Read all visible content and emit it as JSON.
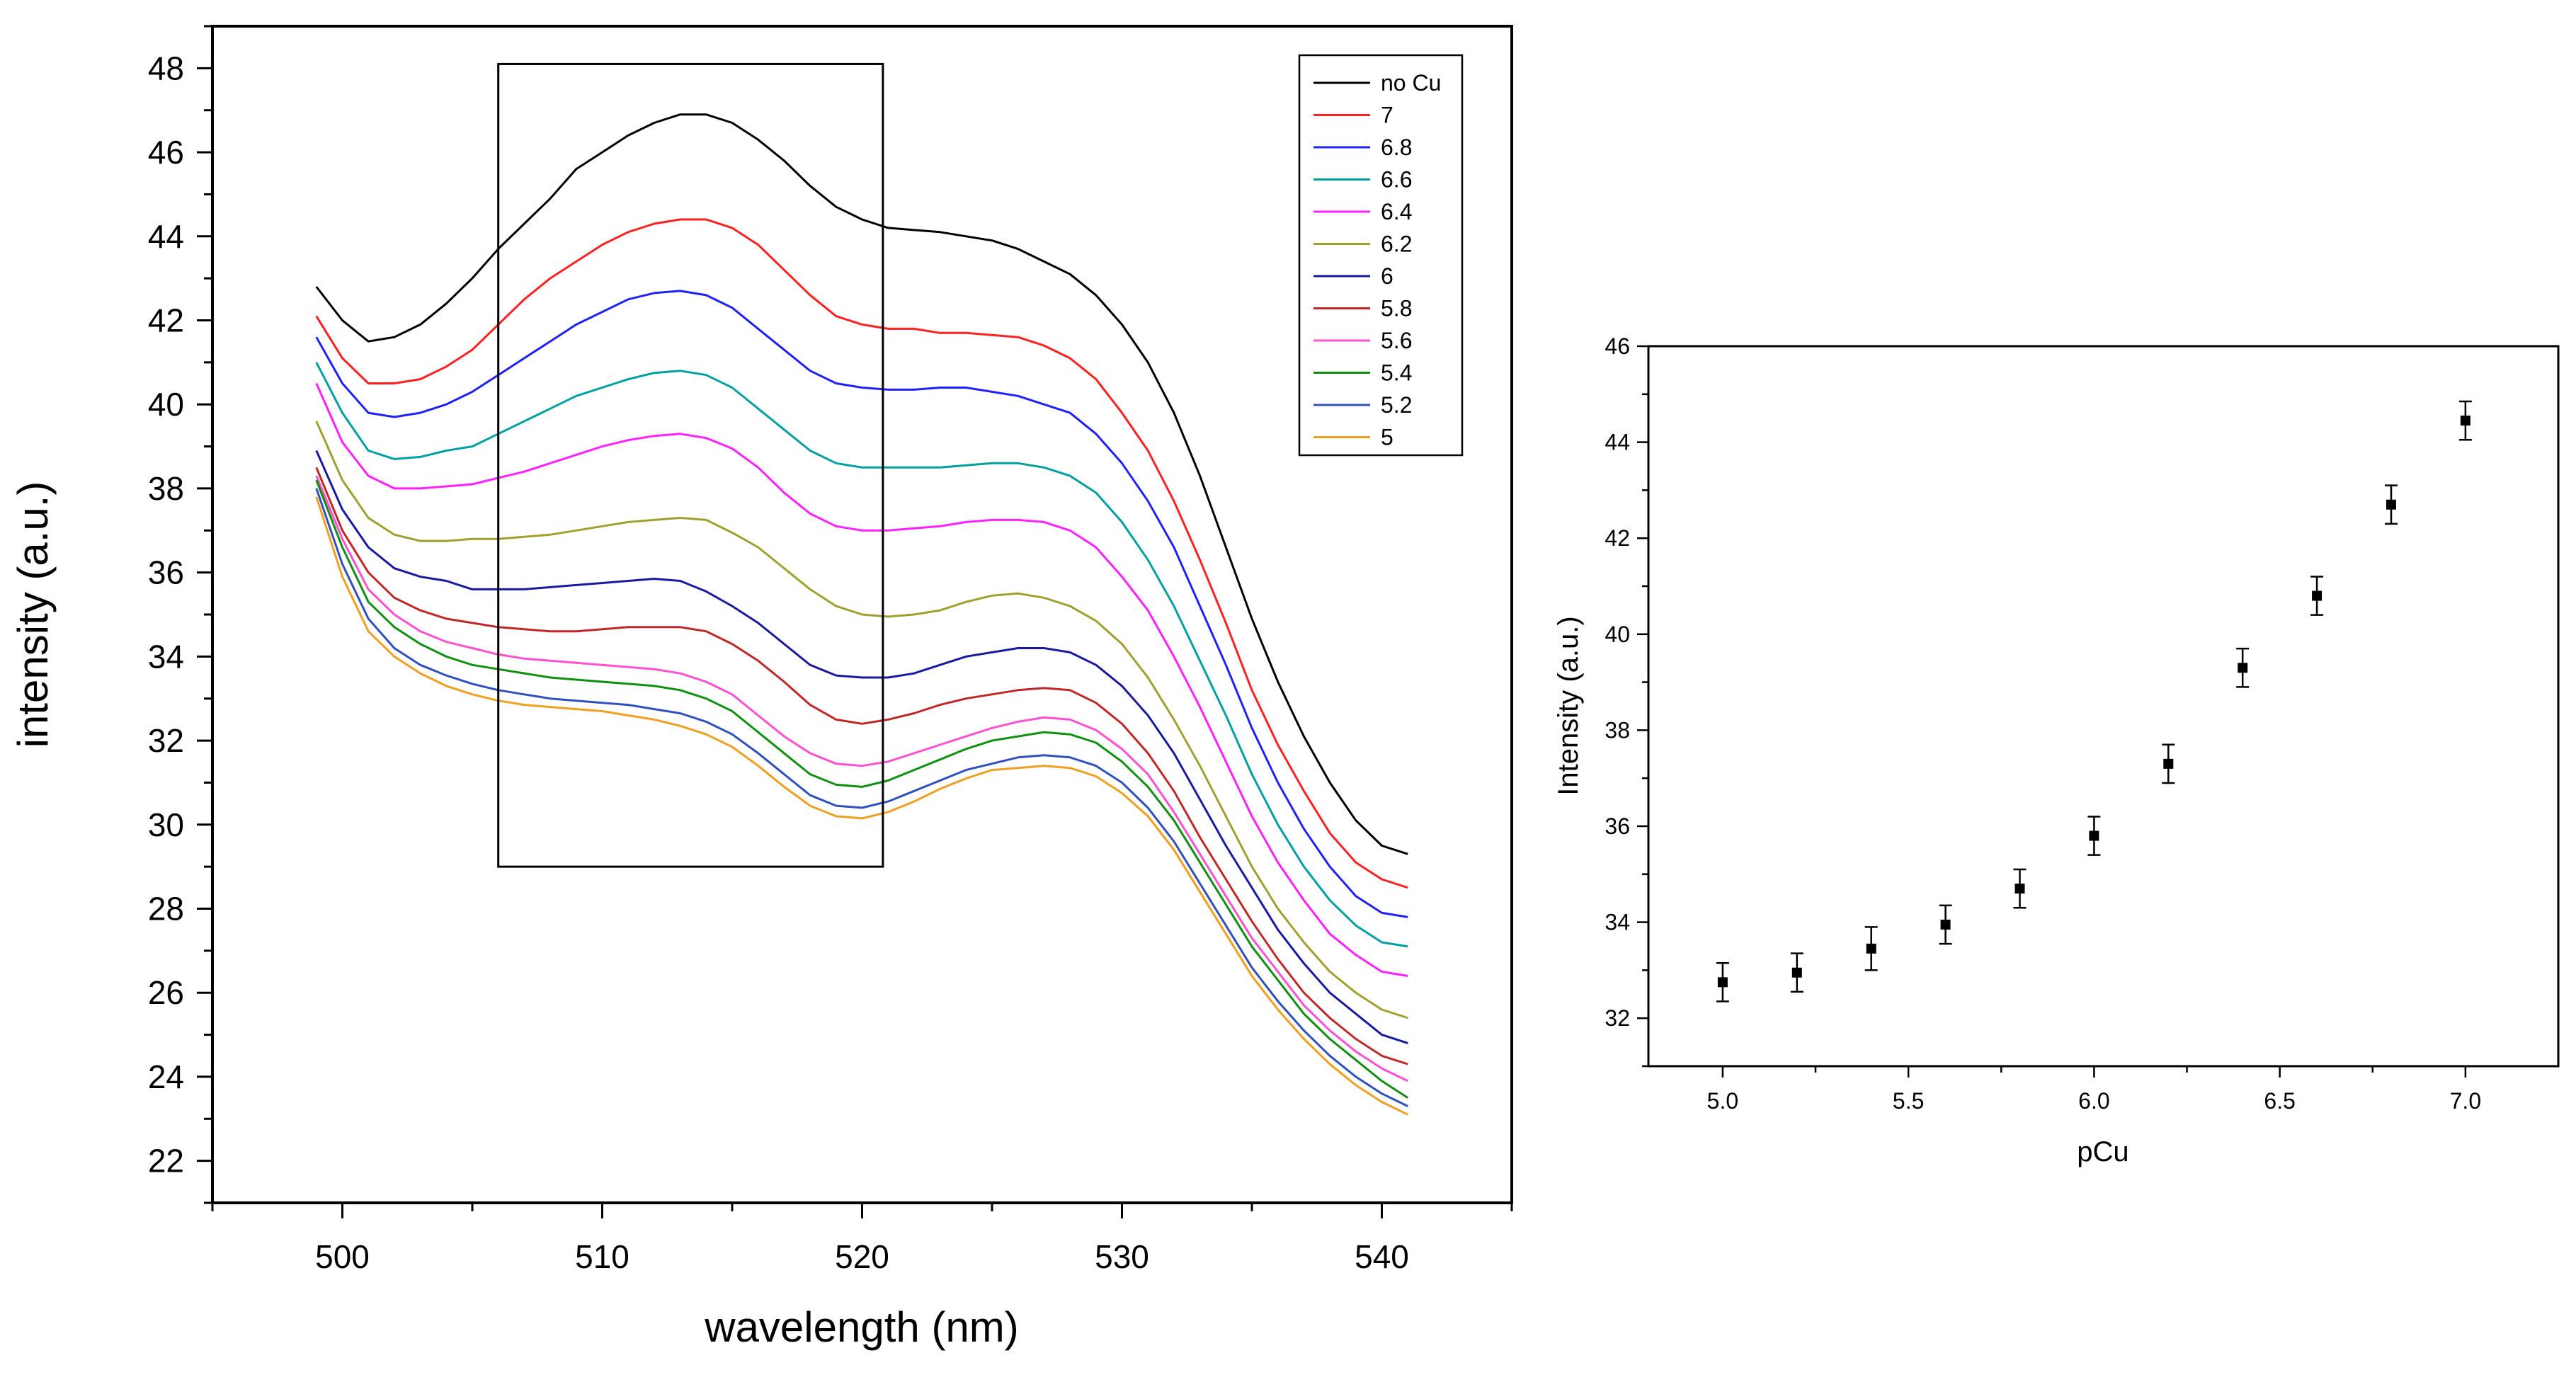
{
  "chart_data": [
    {
      "type": "line",
      "title": "",
      "xlabel": "wavelength (nm)",
      "ylabel": "intensity (a.u.)",
      "xlim": [
        495,
        545
      ],
      "ylim": [
        21,
        49
      ],
      "xticks": [
        500,
        510,
        520,
        530,
        540
      ],
      "yticks": [
        22,
        24,
        26,
        28,
        30,
        32,
        34,
        36,
        38,
        40,
        42,
        44,
        46,
        48
      ],
      "grid": false,
      "legend_position": "top-right",
      "annotations": [
        {
          "type": "rectangle",
          "x_range": [
            506,
            520.8
          ],
          "y_range": [
            29,
            48.1
          ]
        }
      ],
      "x": [
        499,
        500,
        501,
        502,
        503,
        504,
        505,
        506,
        507,
        508,
        509,
        510,
        511,
        512,
        513,
        514,
        515,
        516,
        517,
        518,
        519,
        520,
        521,
        522,
        523,
        524,
        525,
        526,
        527,
        528,
        529,
        530,
        531,
        532,
        533,
        534,
        535,
        536,
        537,
        538,
        539,
        540,
        541
      ],
      "series": [
        {
          "name": "no Cu",
          "color": "#000000",
          "values": [
            42.8,
            42.0,
            41.5,
            41.6,
            41.9,
            42.4,
            43.0,
            43.7,
            44.3,
            44.9,
            45.6,
            46.0,
            46.4,
            46.7,
            46.9,
            46.9,
            46.7,
            46.3,
            45.8,
            45.2,
            44.7,
            44.4,
            44.2,
            44.15,
            44.1,
            44.0,
            43.9,
            43.7,
            43.4,
            43.1,
            42.6,
            41.9,
            41.0,
            39.8,
            38.3,
            36.6,
            34.9,
            33.4,
            32.1,
            31.0,
            30.1,
            29.5,
            29.3
          ]
        },
        {
          "name": "7",
          "color": "#ff2020",
          "values": [
            42.1,
            41.1,
            40.5,
            40.5,
            40.6,
            40.9,
            41.3,
            41.9,
            42.5,
            43.0,
            43.4,
            43.8,
            44.1,
            44.3,
            44.4,
            44.4,
            44.2,
            43.8,
            43.2,
            42.6,
            42.1,
            41.9,
            41.8,
            41.8,
            41.7,
            41.7,
            41.65,
            41.6,
            41.4,
            41.1,
            40.6,
            39.8,
            38.9,
            37.7,
            36.3,
            34.8,
            33.2,
            31.9,
            30.8,
            29.8,
            29.1,
            28.7,
            28.5
          ]
        },
        {
          "name": "6.8",
          "color": "#2020ff",
          "values": [
            41.6,
            40.5,
            39.8,
            39.7,
            39.8,
            40.0,
            40.3,
            40.7,
            41.1,
            41.5,
            41.9,
            42.2,
            42.5,
            42.65,
            42.7,
            42.6,
            42.3,
            41.8,
            41.3,
            40.8,
            40.5,
            40.4,
            40.35,
            40.35,
            40.4,
            40.4,
            40.3,
            40.2,
            40.0,
            39.8,
            39.3,
            38.6,
            37.7,
            36.6,
            35.2,
            33.8,
            32.3,
            31.0,
            29.9,
            29.0,
            28.3,
            27.9,
            27.8
          ]
        },
        {
          "name": "6.6",
          "color": "#00a0a0",
          "values": [
            41.0,
            39.8,
            38.9,
            38.7,
            38.75,
            38.9,
            39.0,
            39.3,
            39.6,
            39.9,
            40.2,
            40.4,
            40.6,
            40.75,
            40.8,
            40.7,
            40.4,
            39.9,
            39.4,
            38.9,
            38.6,
            38.5,
            38.5,
            38.5,
            38.5,
            38.55,
            38.6,
            38.6,
            38.5,
            38.3,
            37.9,
            37.2,
            36.3,
            35.2,
            33.9,
            32.6,
            31.2,
            30.0,
            29.0,
            28.2,
            27.6,
            27.2,
            27.1
          ]
        },
        {
          "name": "6.4",
          "color": "#ff20ff",
          "values": [
            40.5,
            39.1,
            38.3,
            38.0,
            38.0,
            38.05,
            38.1,
            38.25,
            38.4,
            38.6,
            38.8,
            39.0,
            39.15,
            39.25,
            39.3,
            39.2,
            38.95,
            38.5,
            37.9,
            37.4,
            37.1,
            37.0,
            37.0,
            37.05,
            37.1,
            37.2,
            37.25,
            37.25,
            37.2,
            37.0,
            36.6,
            35.9,
            35.1,
            34.0,
            32.8,
            31.5,
            30.2,
            29.1,
            28.2,
            27.4,
            26.9,
            26.5,
            26.4
          ]
        },
        {
          "name": "6.2",
          "color": "#a0a030",
          "values": [
            39.6,
            38.2,
            37.3,
            36.9,
            36.75,
            36.75,
            36.8,
            36.8,
            36.85,
            36.9,
            37.0,
            37.1,
            37.2,
            37.25,
            37.3,
            37.25,
            36.95,
            36.6,
            36.1,
            35.6,
            35.2,
            35.0,
            34.95,
            35.0,
            35.1,
            35.3,
            35.45,
            35.5,
            35.4,
            35.2,
            34.85,
            34.3,
            33.5,
            32.5,
            31.4,
            30.2,
            29.0,
            28.0,
            27.2,
            26.5,
            26.0,
            25.6,
            25.4
          ]
        },
        {
          "name": "6",
          "color": "#1a1aa0",
          "values": [
            38.9,
            37.5,
            36.6,
            36.1,
            35.9,
            35.8,
            35.6,
            35.6,
            35.6,
            35.65,
            35.7,
            35.75,
            35.8,
            35.85,
            35.8,
            35.55,
            35.2,
            34.8,
            34.3,
            33.8,
            33.55,
            33.5,
            33.5,
            33.6,
            33.8,
            34.0,
            34.1,
            34.2,
            34.2,
            34.1,
            33.8,
            33.3,
            32.6,
            31.7,
            30.6,
            29.5,
            28.5,
            27.5,
            26.7,
            26.0,
            25.5,
            25.0,
            24.8
          ]
        },
        {
          "name": "5.8",
          "color": "#c02828",
          "values": [
            38.5,
            37.0,
            36.0,
            35.4,
            35.1,
            34.9,
            34.8,
            34.7,
            34.65,
            34.6,
            34.6,
            34.65,
            34.7,
            34.7,
            34.7,
            34.6,
            34.3,
            33.9,
            33.4,
            32.85,
            32.5,
            32.4,
            32.5,
            32.65,
            32.85,
            33.0,
            33.1,
            33.2,
            33.25,
            33.2,
            32.9,
            32.4,
            31.7,
            30.8,
            29.7,
            28.7,
            27.7,
            26.8,
            26.0,
            25.4,
            24.9,
            24.5,
            24.3
          ]
        },
        {
          "name": "5.6",
          "color": "#ff50d0",
          "values": [
            38.3,
            36.8,
            35.6,
            35.0,
            34.6,
            34.35,
            34.2,
            34.05,
            33.95,
            33.9,
            33.85,
            33.8,
            33.75,
            33.7,
            33.6,
            33.4,
            33.1,
            32.6,
            32.1,
            31.7,
            31.45,
            31.4,
            31.5,
            31.7,
            31.9,
            32.1,
            32.3,
            32.45,
            32.55,
            32.5,
            32.25,
            31.8,
            31.2,
            30.3,
            29.3,
            28.3,
            27.3,
            26.5,
            25.7,
            25.1,
            24.6,
            24.2,
            23.9
          ]
        },
        {
          "name": "5.4",
          "color": "#109010",
          "values": [
            38.2,
            36.6,
            35.3,
            34.7,
            34.3,
            34.0,
            33.8,
            33.7,
            33.6,
            33.5,
            33.45,
            33.4,
            33.35,
            33.3,
            33.2,
            33.0,
            32.7,
            32.2,
            31.7,
            31.2,
            30.95,
            30.9,
            31.05,
            31.3,
            31.55,
            31.8,
            32.0,
            32.1,
            32.2,
            32.15,
            31.95,
            31.5,
            30.9,
            30.1,
            29.1,
            28.1,
            27.1,
            26.3,
            25.5,
            24.9,
            24.4,
            23.9,
            23.5
          ]
        },
        {
          "name": "5.2",
          "color": "#3050c0",
          "values": [
            38.0,
            36.2,
            34.9,
            34.2,
            33.8,
            33.55,
            33.35,
            33.2,
            33.1,
            33.0,
            32.95,
            32.9,
            32.85,
            32.75,
            32.65,
            32.45,
            32.15,
            31.7,
            31.2,
            30.7,
            30.45,
            30.4,
            30.55,
            30.8,
            31.05,
            31.3,
            31.45,
            31.6,
            31.65,
            31.6,
            31.4,
            31.0,
            30.4,
            29.6,
            28.6,
            27.6,
            26.6,
            25.8,
            25.1,
            24.5,
            24.0,
            23.6,
            23.3
          ]
        },
        {
          "name": "5",
          "color": "#f0a020",
          "values": [
            37.8,
            35.9,
            34.6,
            34.0,
            33.6,
            33.3,
            33.1,
            32.95,
            32.85,
            32.8,
            32.75,
            32.7,
            32.6,
            32.5,
            32.35,
            32.15,
            31.85,
            31.4,
            30.9,
            30.45,
            30.2,
            30.15,
            30.3,
            30.55,
            30.85,
            31.1,
            31.3,
            31.35,
            31.4,
            31.35,
            31.15,
            30.75,
            30.2,
            29.4,
            28.4,
            27.4,
            26.4,
            25.6,
            24.9,
            24.3,
            23.8,
            23.4,
            23.1
          ]
        }
      ]
    },
    {
      "type": "scatter",
      "title": "",
      "xlabel": "pCu",
      "ylabel": "Intensity (a.u.)",
      "xlim": [
        4.8,
        7.25
      ],
      "ylim": [
        31,
        46
      ],
      "xticks": [
        "5.0",
        "5.5",
        "6.0",
        "6.5",
        "7.0"
      ],
      "yticks": [
        32,
        34,
        36,
        38,
        40,
        42,
        44,
        46
      ],
      "grid": false,
      "x": [
        5.0,
        5.2,
        5.4,
        5.6,
        5.8,
        6.0,
        6.2,
        6.4,
        6.6,
        6.8,
        7.0
      ],
      "y": [
        32.75,
        32.95,
        33.45,
        33.95,
        34.7,
        35.8,
        37.3,
        39.3,
        40.8,
        42.7,
        44.45
      ],
      "error": [
        0.4,
        0.4,
        0.45,
        0.4,
        0.4,
        0.4,
        0.4,
        0.4,
        0.4,
        0.4,
        0.4
      ]
    }
  ]
}
